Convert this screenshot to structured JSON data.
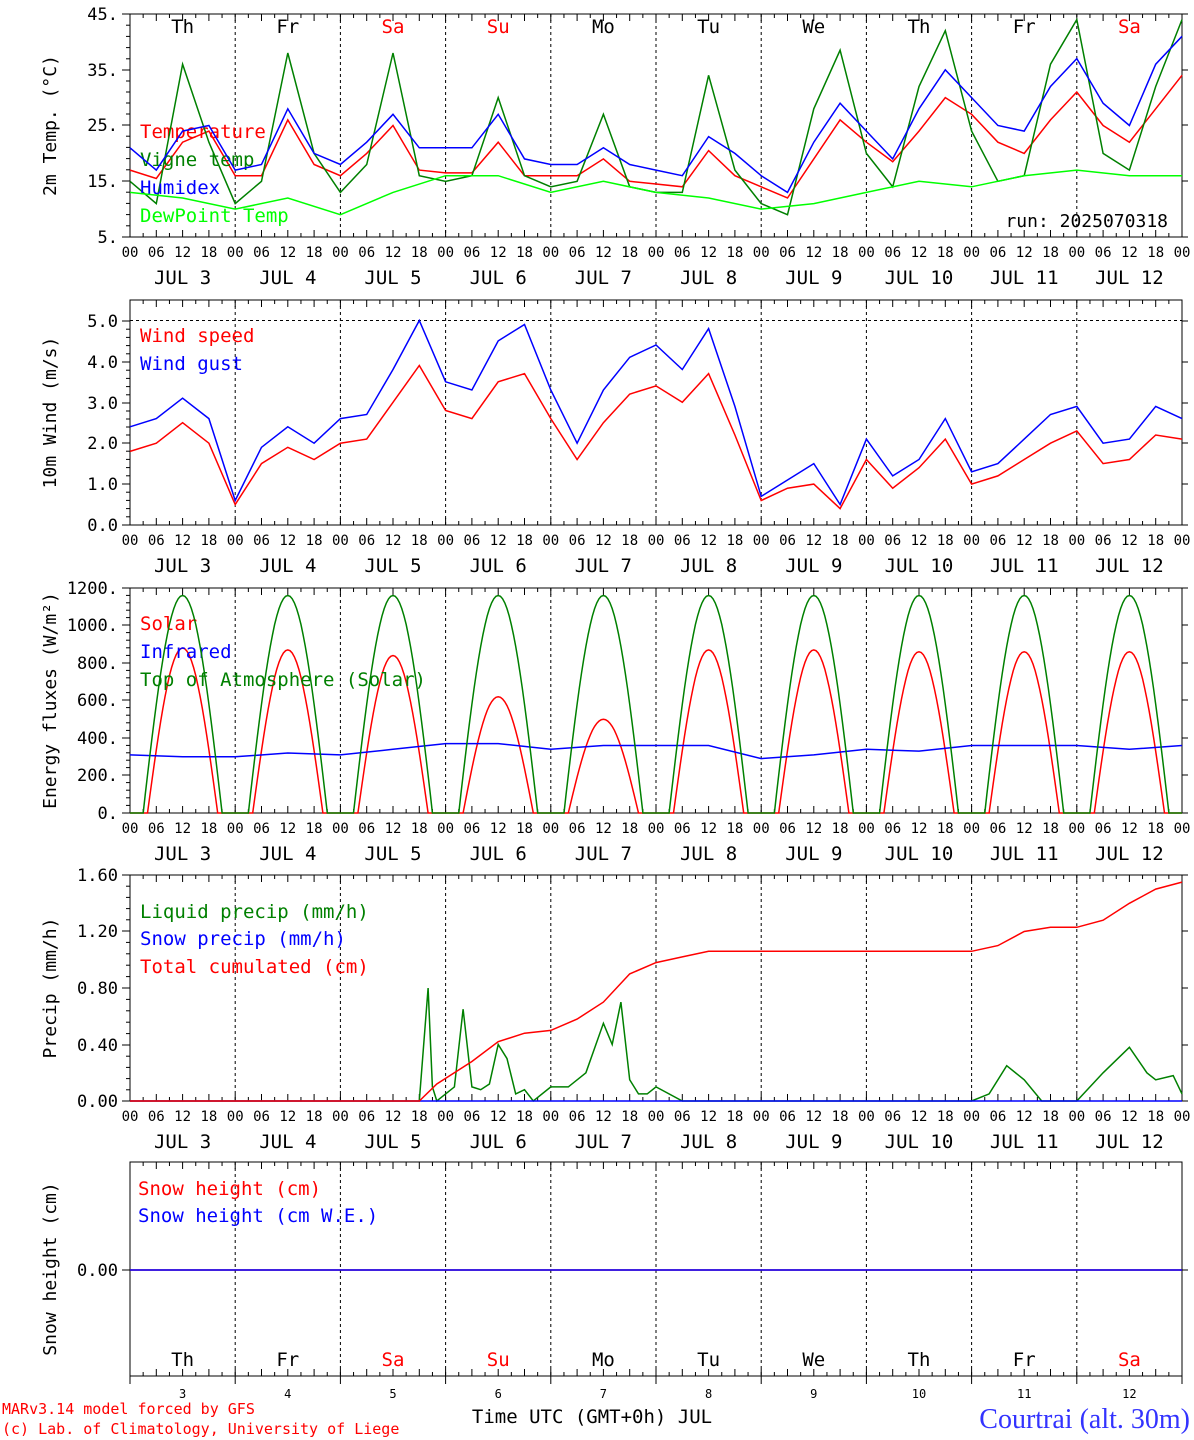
{
  "chart_data": [
    {
      "type": "line",
      "ylabel": "2m Temp. (°C)",
      "ylim": [
        5,
        45
      ],
      "yticks": [
        "5.",
        "15.",
        "25.",
        "35.",
        "45."
      ],
      "x_unit": "hours since JUL 3 00 UTC",
      "grid": "dashed vertical lines at day boundaries",
      "legend_placement": "left",
      "annotation": "run: 2025070318",
      "series": [
        {
          "name": "Temperature",
          "color": "#ff0000",
          "x": [
            0,
            6,
            12,
            18,
            24,
            30,
            36,
            42,
            48,
            54,
            60,
            66,
            72,
            78,
            84,
            90,
            96,
            102,
            108,
            114,
            120,
            126,
            132,
            138,
            144,
            150,
            156,
            162,
            168,
            174,
            180,
            186,
            192,
            198,
            204,
            210,
            216,
            222,
            228,
            234,
            240
          ],
          "values": [
            17,
            15.5,
            22,
            24,
            16,
            16,
            26,
            18,
            16,
            20,
            25,
            17,
            16.5,
            16.5,
            22,
            16,
            16,
            16,
            19,
            15,
            14.5,
            14,
            20.5,
            16,
            14,
            12,
            19,
            26,
            22,
            18.5,
            24,
            30,
            27,
            22,
            20,
            26,
            31,
            25,
            22,
            28,
            34
          ]
        },
        {
          "name": "Vigne temp",
          "color": "#008000",
          "x": [
            0,
            6,
            12,
            18,
            24,
            30,
            36,
            42,
            48,
            54,
            60,
            66,
            72,
            78,
            84,
            90,
            96,
            102,
            108,
            114,
            120,
            126,
            132,
            138,
            144,
            150,
            156,
            162,
            168,
            174,
            180,
            186,
            192,
            198,
            204,
            210,
            216,
            222,
            228,
            234,
            240
          ],
          "values": [
            15,
            11,
            36,
            22,
            11,
            15,
            38,
            20,
            13,
            18,
            38,
            16,
            15,
            16,
            30,
            16,
            14,
            15,
            27,
            14,
            13,
            13,
            34,
            17,
            11,
            9,
            28,
            38.5,
            20,
            14,
            32,
            42,
            24,
            15,
            16,
            36,
            44,
            20,
            17,
            32,
            44
          ]
        },
        {
          "name": "Humidex",
          "color": "#0000ff",
          "x": [
            0,
            6,
            12,
            18,
            24,
            30,
            36,
            42,
            48,
            54,
            60,
            66,
            72,
            78,
            84,
            90,
            96,
            102,
            108,
            114,
            120,
            126,
            132,
            138,
            144,
            150,
            156,
            162,
            168,
            174,
            180,
            186,
            192,
            198,
            204,
            210,
            216,
            222,
            228,
            234,
            240
          ],
          "values": [
            21,
            17,
            24,
            25,
            17,
            18,
            28,
            20,
            18,
            22,
            27,
            21,
            21,
            21,
            27,
            19,
            18,
            18,
            21,
            18,
            17,
            16,
            23,
            20,
            16,
            13,
            22,
            29,
            24,
            19,
            28,
            35,
            30,
            25,
            24,
            32,
            37,
            29,
            25,
            36,
            41
          ]
        },
        {
          "name": "DewPoint Temp",
          "color": "#00ff00",
          "x": [
            0,
            12,
            24,
            36,
            48,
            60,
            72,
            84,
            96,
            108,
            120,
            132,
            144,
            156,
            168,
            180,
            192,
            204,
            216,
            228,
            240
          ],
          "values": [
            13,
            12,
            10,
            12,
            9,
            13,
            16,
            16,
            13,
            15,
            13,
            12,
            10,
            11,
            13,
            15,
            14,
            16,
            17,
            16,
            16
          ]
        }
      ],
      "day_labels": [
        "Th",
        "Fr",
        "Sa",
        "Su",
        "Mo",
        "Tu",
        "We",
        "Th",
        "Fr",
        "Sa"
      ],
      "day_label_colors": [
        "#000000",
        "#000000",
        "#ff0000",
        "#ff0000",
        "#000000",
        "#000000",
        "#000000",
        "#000000",
        "#000000",
        "#ff0000"
      ]
    },
    {
      "type": "line",
      "ylabel": "10m Wind (m/s)",
      "ylim": [
        0,
        5.5
      ],
      "yticks": [
        "0.0",
        "1.0",
        "2.0",
        "3.0",
        "4.0",
        "5.0"
      ],
      "reference_line": 5.0,
      "legend_placement": "left",
      "series": [
        {
          "name": "Wind speed",
          "color": "#ff0000",
          "x": [
            0,
            6,
            12,
            18,
            24,
            30,
            36,
            42,
            48,
            54,
            60,
            66,
            72,
            78,
            84,
            90,
            96,
            102,
            108,
            114,
            120,
            126,
            132,
            138,
            144,
            150,
            156,
            162,
            168,
            174,
            180,
            186,
            192,
            198,
            204,
            210,
            216,
            222,
            228,
            234,
            240
          ],
          "values": [
            1.8,
            2.0,
            2.5,
            2.0,
            0.5,
            1.5,
            1.9,
            1.6,
            2.0,
            2.1,
            3.0,
            3.9,
            2.8,
            2.6,
            3.5,
            3.7,
            2.6,
            1.6,
            2.5,
            3.2,
            3.4,
            3.0,
            3.7,
            2.2,
            0.6,
            0.9,
            1.0,
            0.4,
            1.6,
            0.9,
            1.4,
            2.1,
            1.0,
            1.2,
            1.6,
            2.0,
            2.3,
            1.5,
            1.6,
            2.2,
            2.1
          ]
        },
        {
          "name": "Wind gust",
          "color": "#0000ff",
          "x": [
            0,
            6,
            12,
            18,
            24,
            30,
            36,
            42,
            48,
            54,
            60,
            66,
            72,
            78,
            84,
            90,
            96,
            102,
            108,
            114,
            120,
            126,
            132,
            138,
            144,
            150,
            156,
            162,
            168,
            174,
            180,
            186,
            192,
            198,
            204,
            210,
            216,
            222,
            228,
            234,
            240
          ],
          "values": [
            2.4,
            2.6,
            3.1,
            2.6,
            0.6,
            1.9,
            2.4,
            2.0,
            2.6,
            2.7,
            3.8,
            5.0,
            3.5,
            3.3,
            4.5,
            4.9,
            3.3,
            2.0,
            3.3,
            4.1,
            4.4,
            3.8,
            4.8,
            2.9,
            0.7,
            1.1,
            1.5,
            0.5,
            2.1,
            1.2,
            1.6,
            2.6,
            1.3,
            1.5,
            2.1,
            2.7,
            2.9,
            2.0,
            2.1,
            2.9,
            2.6
          ]
        }
      ]
    },
    {
      "type": "line",
      "ylabel": "Energy fluxes (W/m²)",
      "ylim": [
        0,
        1200
      ],
      "yticks": [
        "0.",
        "200.",
        "400.",
        "600.",
        "800.",
        "1000.",
        "1200."
      ],
      "legend_placement": "left",
      "series": [
        {
          "name": "Solar",
          "color": "#ff0000",
          "daily_peak_values": [
            880,
            870,
            840,
            620,
            500,
            870,
            870,
            860,
            860,
            860
          ]
        },
        {
          "name": "Infrared",
          "color": "#0000ff",
          "x": [
            0,
            12,
            24,
            36,
            48,
            60,
            72,
            84,
            96,
            108,
            120,
            132,
            144,
            156,
            168,
            180,
            192,
            204,
            216,
            228,
            240
          ],
          "values": [
            310,
            300,
            300,
            320,
            310,
            340,
            370,
            370,
            340,
            360,
            360,
            360,
            290,
            310,
            340,
            330,
            360,
            360,
            360,
            340,
            360
          ]
        },
        {
          "name": "Top of Atmosphere (Solar)",
          "color": "#008000",
          "daily_peak_values": [
            1160,
            1160,
            1160,
            1160,
            1160,
            1160,
            1160,
            1160,
            1160,
            1160
          ]
        }
      ]
    },
    {
      "type": "line",
      "ylabel": "Precip (mm/h)",
      "ylim": [
        0,
        1.6
      ],
      "yticks": [
        "0.00",
        "0.40",
        "0.80",
        "1.20",
        "1.60"
      ],
      "legend_placement": "left",
      "series": [
        {
          "name": "Liquid precip (mm/h)",
          "color": "#008000",
          "x": [
            0,
            66,
            68,
            69,
            70,
            72,
            74,
            76,
            78,
            80,
            82,
            84,
            86,
            88,
            90,
            92,
            96,
            100,
            104,
            108,
            110,
            112,
            114,
            116,
            118,
            120,
            126,
            132,
            138,
            192,
            196,
            200,
            204,
            208,
            210,
            216,
            222,
            228,
            232,
            234,
            238,
            240
          ],
          "values": [
            0,
            0,
            0.8,
            0.1,
            0,
            0.05,
            0.1,
            0.65,
            0.1,
            0.08,
            0.12,
            0.4,
            0.3,
            0.05,
            0.08,
            0,
            0.1,
            0.1,
            0.2,
            0.55,
            0.4,
            0.7,
            0.15,
            0.05,
            0.05,
            0.1,
            0,
            0,
            0,
            0,
            0.05,
            0.25,
            0.15,
            0,
            0,
            0,
            0.2,
            0.38,
            0.2,
            0.15,
            0.18,
            0.05
          ]
        },
        {
          "name": "Snow precip (mm/h)",
          "color": "#0000ff",
          "x": [
            0,
            240
          ],
          "values": [
            0,
            0
          ]
        },
        {
          "name": "Total cumulated (cm)",
          "color": "#ff0000",
          "x": [
            0,
            66,
            70,
            78,
            84,
            90,
            96,
            102,
            108,
            114,
            120,
            126,
            132,
            138,
            192,
            198,
            204,
            210,
            216,
            222,
            228,
            234,
            240
          ],
          "values": [
            0,
            0,
            0.12,
            0.28,
            0.42,
            0.48,
            0.5,
            0.58,
            0.7,
            0.9,
            0.98,
            1.02,
            1.06,
            1.06,
            1.06,
            1.1,
            1.2,
            1.23,
            1.23,
            1.28,
            1.4,
            1.5,
            1.55
          ]
        }
      ]
    },
    {
      "type": "line",
      "ylabel": "Snow height (cm)",
      "yticks": [
        "0.00"
      ],
      "legend_placement": "left",
      "series": [
        {
          "name": "Snow height (cm)",
          "color": "#ff0000",
          "x": [
            0,
            240
          ],
          "values": [
            0,
            0
          ]
        },
        {
          "name": "Snow height (cm W.E.)",
          "color": "#0000ff",
          "x": [
            0,
            240
          ],
          "values": [
            0,
            0
          ]
        }
      ],
      "day_labels": [
        "Th",
        "Fr",
        "Sa",
        "Su",
        "Mo",
        "Tu",
        "We",
        "Th",
        "Fr",
        "Sa"
      ],
      "day_numbers": [
        "3",
        "4",
        "5",
        "6",
        "7",
        "8",
        "9",
        "10",
        "11",
        "12"
      ],
      "xlabel": "Time UTC (GMT+0h) JUL"
    }
  ],
  "x_axis": {
    "hour_labels": [
      "00",
      "06",
      "12",
      "18"
    ],
    "date_labels": [
      "JUL  3",
      "JUL  4",
      "JUL  5",
      "JUL  6",
      "JUL  7",
      "JUL  8",
      "JUL  9",
      "JUL 10",
      "JUL 11",
      "JUL 12"
    ]
  },
  "footer": {
    "credit_line1": "MARv3.14 model forced by GFS",
    "credit_line2": "(c) Lab. of Climatology, University of Liege",
    "station": "Courtrai (alt. 30m)"
  }
}
